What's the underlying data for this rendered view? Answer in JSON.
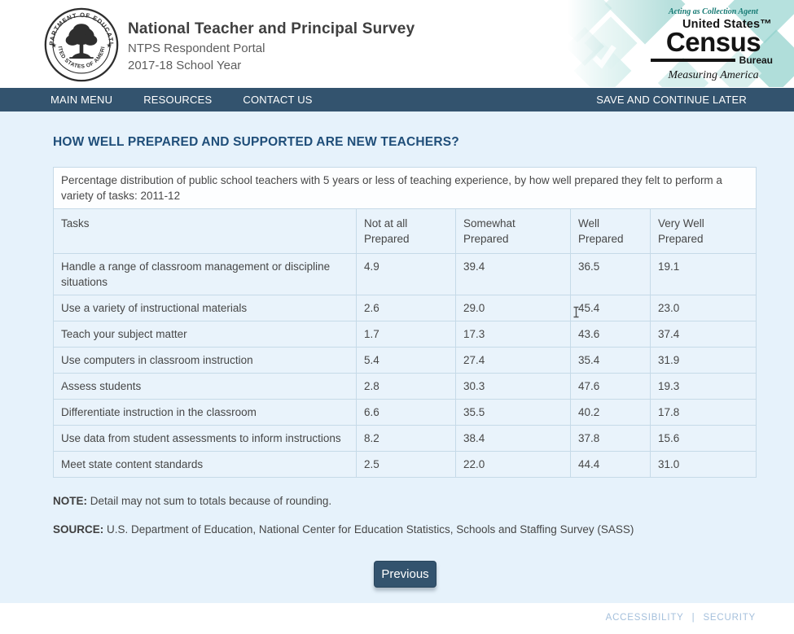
{
  "header": {
    "title": "National Teacher and Principal Survey",
    "subtitle1": "NTPS Respondent Portal",
    "subtitle2": "2017-18 School Year",
    "seal": {
      "top_text": "DEPARTMENT OF EDUCATION",
      "bottom_text": "UNITED STATES OF AMERICA"
    },
    "census_logo": {
      "tagline_top": "Acting as Collection Agent",
      "united_states": "United States™",
      "census": "Census",
      "bureau": "Bureau",
      "tagline_bottom": "Measuring America"
    }
  },
  "nav": {
    "items": [
      "MAIN MENU",
      "RESOURCES",
      "CONTACT US"
    ],
    "right_item": "SAVE AND CONTINUE LATER"
  },
  "page": {
    "heading": "HOW WELL PREPARED AND SUPPORTED ARE NEW TEACHERS?",
    "note_label": "NOTE:",
    "note_text": " Detail may not sum to totals because of rounding.",
    "source_label": "SOURCE:",
    "source_text": " U.S. Department of Education, National Center for Education Statistics, Schools and Staffing Survey (SASS)",
    "previous_button": "Previous"
  },
  "table": {
    "caption": "Percentage distribution of public school teachers with 5 years or less of teaching experience, by how well prepared they felt to perform a variety of tasks: 2011-12",
    "columns": [
      "Tasks",
      "Not at all Prepared",
      "Somewhat Prepared",
      "Well Prepared",
      "Very Well Prepared"
    ],
    "rows": [
      [
        "Handle a range of classroom management or discipline situations",
        "4.9",
        "39.4",
        "36.5",
        "19.1"
      ],
      [
        "Use a variety of instructional materials",
        "2.6",
        "29.0",
        "45.4",
        "23.0"
      ],
      [
        "Teach your subject matter",
        "1.7",
        "17.3",
        "43.6",
        "37.4"
      ],
      [
        "Use computers in classroom instruction",
        "5.4",
        "27.4",
        "35.4",
        "31.9"
      ],
      [
        "Assess students",
        "2.8",
        "30.3",
        "47.6",
        "19.3"
      ],
      [
        "Differentiate instruction in the classroom",
        "6.6",
        "35.5",
        "40.2",
        "17.8"
      ],
      [
        "Use data from student assessments to inform instructions",
        "8.2",
        "38.4",
        "37.8",
        "15.6"
      ],
      [
        "Meet state content standards",
        "2.5",
        "22.0",
        "44.4",
        "31.0"
      ]
    ]
  },
  "footer": {
    "links": [
      "ACCESSIBILITY",
      "SECURITY"
    ],
    "separator": "|"
  },
  "colors": {
    "nav_blue": "#33536e",
    "heading_blue": "#1f4e79",
    "content_bg": "#e6f2fb",
    "table_row_bg": "#e9f3fb",
    "table_border": "#c6dae8",
    "census_teal": "#167a74",
    "footer_link": "#a5c0dc"
  }
}
